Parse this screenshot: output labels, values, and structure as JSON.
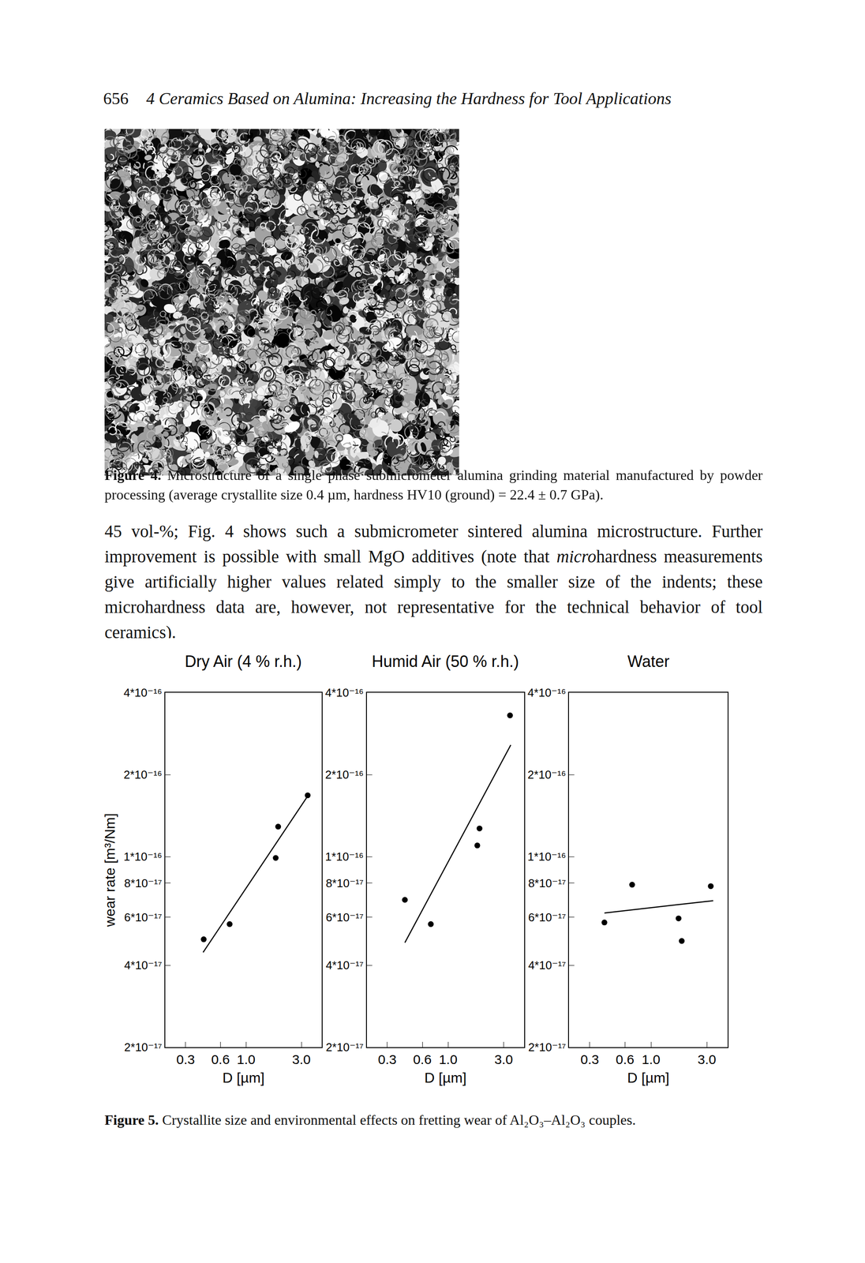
{
  "page": {
    "header": {
      "page_number": "656",
      "running_title": "4 Ceramics Based on Alumina: Increasing the Hardness for Tool Applications"
    },
    "figure4": {
      "label": "Figure 4.",
      "caption": "Microstructure of a single phase submicrometer alumina grinding material manufactured by powder processing (average crystallite size 0.4 µm, hardness HV10 (ground) = 22.4 ± 0.7 GPa)."
    },
    "body": [
      {
        "text": "45 vol-%; Fig. 4 shows such a submicrometer sintered alumina microstructure. Further improvement is possible with small MgO additives (note that "
      },
      {
        "text": "micro",
        "italic": true
      },
      {
        "text": "hardness measurements give artificially higher values related simply to the smaller size of the indents; these microhardness data are, however, not representative for the technical behavior of tool ceramics)."
      }
    ],
    "figure5": {
      "label": "Figure 5.",
      "caption": "Crystallite size and environmental effects on fretting wear of Al₂O₃–Al₂O₃ couples."
    }
  },
  "chart_data": [
    {
      "type": "scatter",
      "title": "Dry Air (4 % r.h.)",
      "x_label": "D [µm]",
      "y_label": "wear rate [m³/Nm]",
      "log": true,
      "xlim": [
        0.2,
        4.5
      ],
      "ylim": [
        2e-17,
        4e-16
      ],
      "xticks": [
        0.3,
        0.6,
        {
          "value": 1,
          "label": "1.0"
        },
        {
          "value": 3,
          "label": "3.0"
        }
      ],
      "yticks": [
        {
          "value": 2e-17,
          "label": "2*10⁻¹⁷"
        },
        {
          "value": 4e-17,
          "label": "4*10⁻¹⁷"
        },
        {
          "value": 6e-17,
          "label": "6*10⁻¹⁷"
        },
        {
          "value": 8e-17,
          "label": "8*10⁻¹⁷"
        },
        {
          "value": 1e-16,
          "label": "1*10⁻¹⁶"
        },
        {
          "value": 2e-16,
          "label": "2*10⁻¹⁶"
        },
        {
          "value": 4e-16,
          "label": "4*10⁻¹⁶"
        }
      ],
      "series": [
        {
          "type": "scatter",
          "color": "#000000",
          "marker": "circle",
          "x": [
            0.43,
            0.72,
            1.8,
            1.89,
            3.4
          ],
          "values": [
            4.98e-17,
            5.66e-17,
            9.9e-17,
            1.29e-16,
            1.68e-16
          ]
        },
        {
          "type": "line",
          "color": "#000000",
          "line_style": "solid",
          "x": [
            0.425,
            3.5
          ],
          "values": [
            4.46e-17,
            1.7e-16
          ]
        }
      ]
    },
    {
      "type": "scatter",
      "title": "Humid Air (50 % r.h.)",
      "x_label": "D [µm]",
      "log": true,
      "xlim": [
        0.2,
        4.5
      ],
      "ylim": [
        2e-17,
        4e-16
      ],
      "xticks": [
        0.3,
        0.6,
        {
          "value": 1,
          "label": "1.0"
        },
        {
          "value": 3,
          "label": "3.0"
        }
      ],
      "yticks": [
        {
          "value": 2e-17,
          "label": "2*10⁻¹⁷"
        },
        {
          "value": 4e-17,
          "label": "4*10⁻¹⁷"
        },
        {
          "value": 6e-17,
          "label": "6*10⁻¹⁷"
        },
        {
          "value": 8e-17,
          "label": "8*10⁻¹⁷"
        },
        {
          "value": 1e-16,
          "label": "1*10⁻¹⁶"
        },
        {
          "value": 2e-16,
          "label": "2*10⁻¹⁶"
        },
        {
          "value": 4e-16,
          "label": "4*10⁻¹⁶"
        }
      ],
      "series": [
        {
          "type": "scatter",
          "color": "#000000",
          "marker": "circle",
          "x": [
            0.425,
            0.71,
            1.78,
            1.86,
            3.4
          ],
          "values": [
            6.95e-17,
            5.66e-17,
            1.1e-16,
            1.27e-16,
            3.3e-16
          ]
        },
        {
          "type": "line",
          "color": "#000000",
          "line_style": "solid",
          "x": [
            0.425,
            3.45
          ],
          "values": [
            4.84e-17,
            2.57e-16
          ]
        }
      ]
    },
    {
      "type": "scatter",
      "title": "Water",
      "x_label": "D [µm]",
      "log": true,
      "xlim": [
        0.2,
        4.5
      ],
      "ylim": [
        2e-17,
        4e-16
      ],
      "xticks": [
        0.3,
        0.6,
        {
          "value": 1,
          "label": "1.0"
        },
        {
          "value": 3,
          "label": "3.0"
        }
      ],
      "yticks": [
        {
          "value": 2e-17,
          "label": "2*10⁻¹⁷"
        },
        {
          "value": 4e-17,
          "label": "4*10⁻¹⁷"
        },
        {
          "value": 6e-17,
          "label": "6*10⁻¹⁷"
        },
        {
          "value": 8e-17,
          "label": "8*10⁻¹⁷"
        },
        {
          "value": 1e-16,
          "label": "1*10⁻¹⁶"
        },
        {
          "value": 2e-16,
          "label": "2*10⁻¹⁶"
        },
        {
          "value": 4e-16,
          "label": "4*10⁻¹⁶"
        }
      ],
      "series": [
        {
          "type": "scatter",
          "color": "#000000",
          "marker": "circle",
          "x": [
            0.4,
            0.69,
            1.72,
            1.83,
            3.24
          ],
          "values": [
            5.74e-17,
            7.9e-17,
            5.94e-17,
            4.91e-17,
            7.8e-17
          ]
        },
        {
          "type": "line",
          "color": "#000000",
          "line_style": "solid",
          "x": [
            0.4,
            3.4
          ],
          "values": [
            6.22e-17,
            6.9e-17
          ]
        }
      ]
    }
  ]
}
